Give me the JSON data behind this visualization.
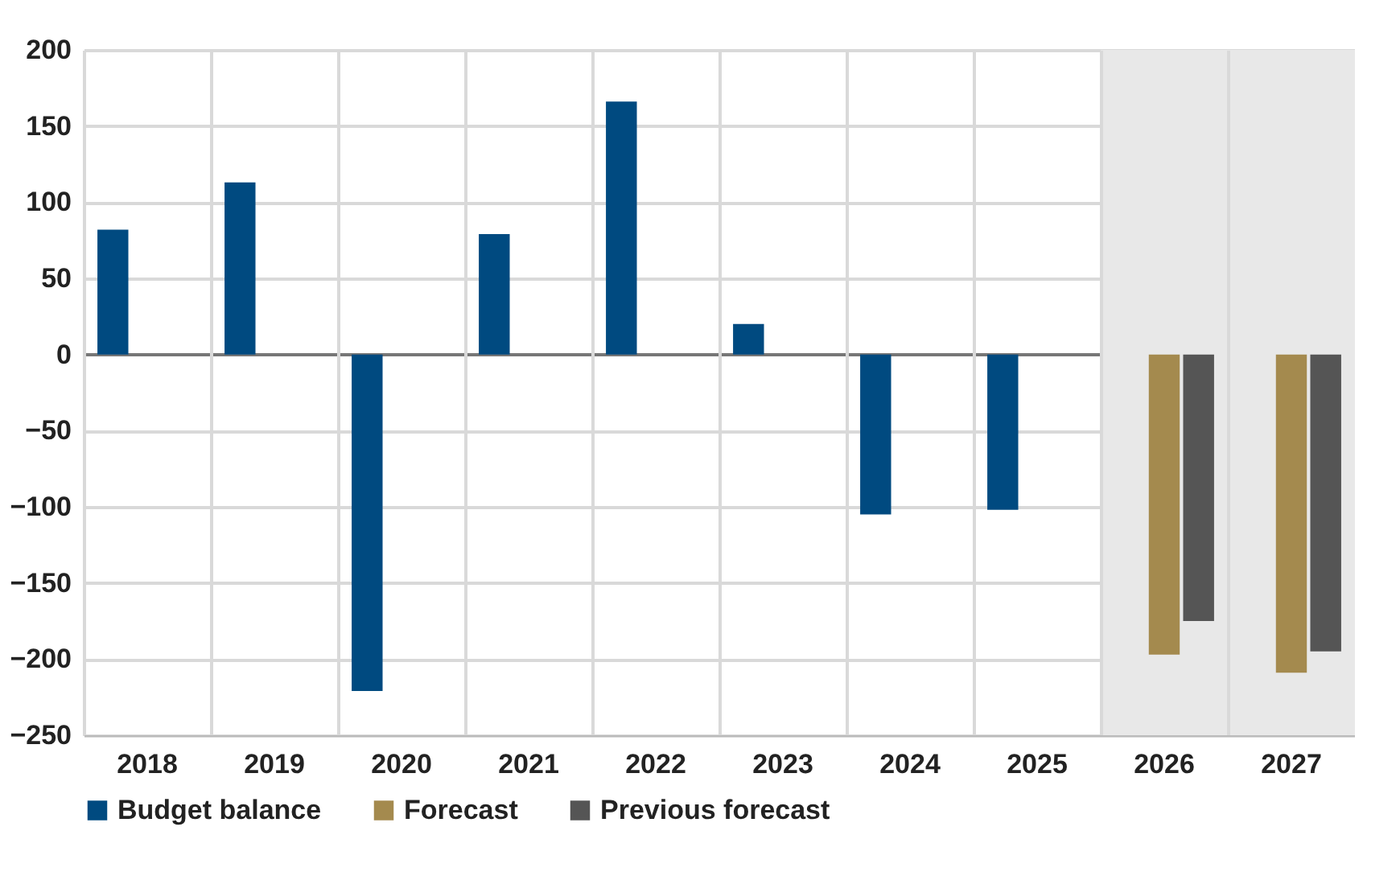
{
  "chart_data": {
    "type": "bar",
    "categories": [
      "2018",
      "2019",
      "2020",
      "2021",
      "2022",
      "2023",
      "2024",
      "2025",
      "2026",
      "2027"
    ],
    "series": [
      {
        "name": "Budget balance",
        "color": "#004a80",
        "values": [
          82,
          113,
          -221,
          79,
          166,
          20,
          -105,
          -102,
          null,
          null
        ]
      },
      {
        "name": "Forecast",
        "color": "#a48a4e",
        "values": [
          null,
          null,
          null,
          null,
          null,
          null,
          null,
          null,
          -197,
          -209
        ]
      },
      {
        "name": "Previous forecast",
        "color": "#555555",
        "values": [
          null,
          null,
          null,
          null,
          null,
          null,
          null,
          null,
          -175,
          -195
        ]
      }
    ],
    "ylim": [
      -250,
      200
    ],
    "yticks": [
      -250,
      -200,
      -150,
      -100,
      -50,
      0,
      50,
      100,
      150,
      200
    ],
    "grid": true,
    "legend": "bottom",
    "bands": [
      {
        "axis": "x",
        "from": "2026",
        "to": "2027",
        "color": "#e8e8e8"
      }
    ]
  }
}
